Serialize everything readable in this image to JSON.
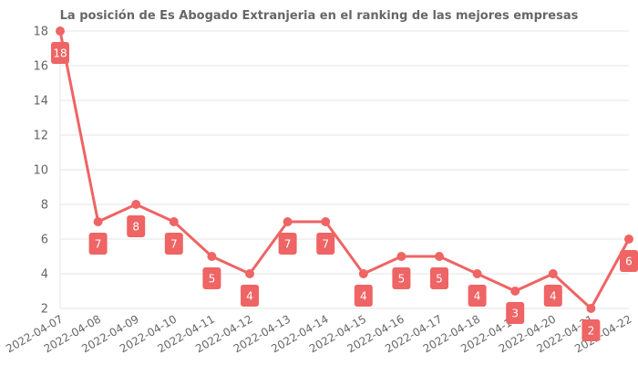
{
  "chart_data": {
    "type": "line",
    "title": "La posición de Es Abogado Extranjeria en el ranking de las mejores empresas",
    "xlabel": "",
    "ylabel": "",
    "x": [
      "2022-04-07",
      "2022-04-08",
      "2022-04-09",
      "2022-04-10",
      "2022-04-11",
      "2022-04-12",
      "2022-04-13",
      "2022-04-14",
      "2022-04-15",
      "2022-04-16",
      "2022-04-17",
      "2022-04-18",
      "2022-04-19",
      "2022-04-20",
      "2022-04-21",
      "2022-04-22"
    ],
    "values": [
      18,
      7,
      8,
      7,
      5,
      4,
      7,
      7,
      4,
      5,
      5,
      4,
      3,
      4,
      2,
      6
    ],
    "ylim": [
      2,
      18
    ],
    "yticks": [
      2,
      4,
      6,
      8,
      10,
      12,
      14,
      16,
      18
    ],
    "grid": true,
    "data_labels": true,
    "legend": "none",
    "color": "#ef6464"
  }
}
